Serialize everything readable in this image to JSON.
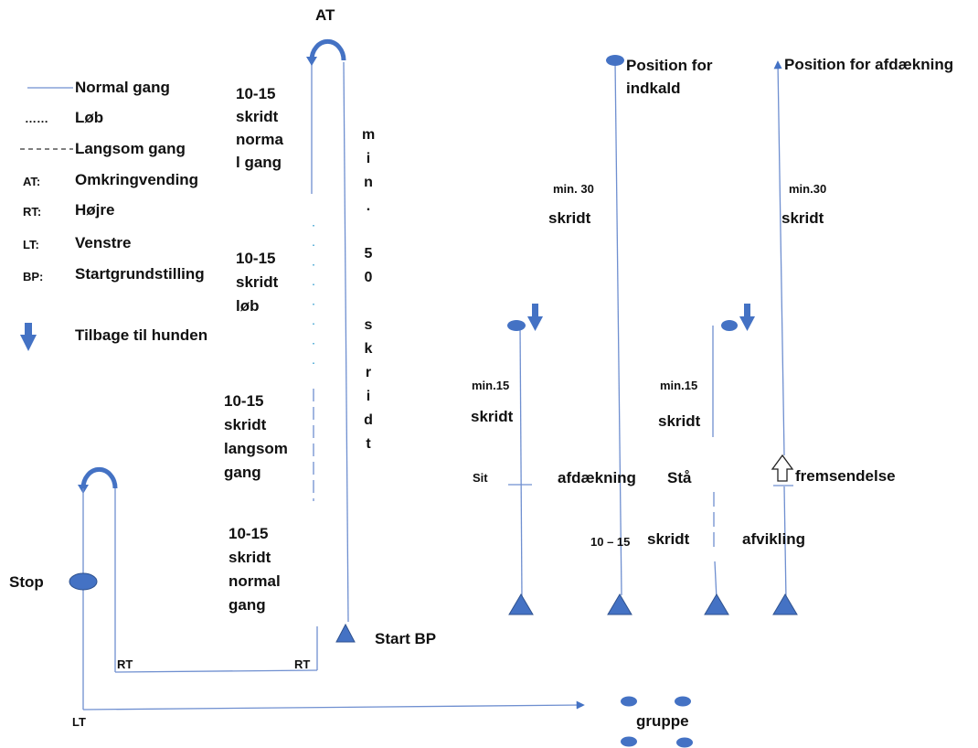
{
  "colors": {
    "line": "#6f8fd0",
    "shape_fill": "#4472c4",
    "shape_stroke": "#2f528f",
    "text": "#111111"
  },
  "legend": [
    {
      "symbol": "",
      "label": "Normal gang"
    },
    {
      "symbol": "……",
      "label": "Løb"
    },
    {
      "symbol": "",
      "label": "Langsom gang"
    },
    {
      "symbol": "AT:",
      "label": "Omkringvending"
    },
    {
      "symbol": "RT:",
      "label": "Højre"
    },
    {
      "symbol": "LT:",
      "label": "Venstre"
    },
    {
      "symbol": "BP:",
      "label": "Startgrundstilling"
    },
    {
      "symbol": "arrow-down-icon",
      "label": "Tilbage til hunden"
    }
  ],
  "course": {
    "at_label": "AT",
    "segment_normal_1": [
      "10-15",
      "skridt",
      "norma",
      "l gang"
    ],
    "segment_run": [
      "10-15",
      "skridt",
      "løb"
    ],
    "segment_slow": [
      "10-15",
      "skridt",
      "langsom",
      "gang"
    ],
    "segment_normal_2": [
      "10-15",
      "skridt",
      "normal",
      "gang"
    ],
    "min_50_letters": [
      "m",
      "i",
      "n",
      ".",
      "",
      "5",
      "0",
      "",
      "s",
      "k",
      "r",
      "i",
      "d",
      "t"
    ],
    "start_label": "Start BP",
    "rt_label_1": "RT",
    "rt_label_2": "RT",
    "lt_label": "LT",
    "stop_label": "Stop",
    "group_label": "gruppe"
  },
  "exercises": {
    "sit": {
      "min_label": "min.15",
      "skridt_label": "skridt",
      "mark_label": "Sit"
    },
    "recall": {
      "position_label": "Position for",
      "position_label_2": "indkald",
      "min_label": "min. 30",
      "skridt_label": "skridt",
      "action_label": "afdækning"
    },
    "stand": {
      "min_label": "min.15",
      "skridt_label": "skridt",
      "mark_label": "Stå"
    },
    "send": {
      "position_label": "Position for afdækning",
      "min_label": "min.30",
      "skridt_label": "skridt",
      "action_label": "fremsendelse"
    },
    "shared_distance": "10 – 15",
    "shared_distance_unit": "skridt",
    "shared_action": "afvikling"
  }
}
